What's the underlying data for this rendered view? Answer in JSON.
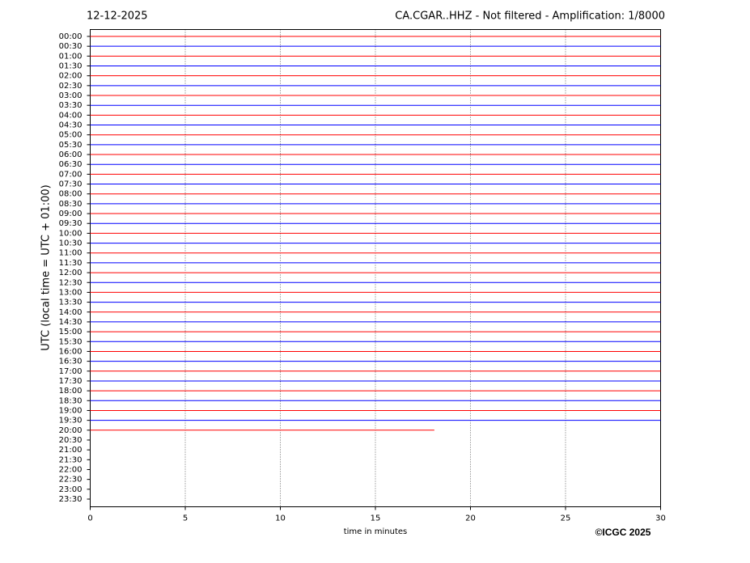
{
  "chart_data": {
    "type": "helicorder",
    "title_left": "12-12-2025",
    "title_right": "CA.CGAR..HHZ - Not filtered - Amplification: 1/8000",
    "ylabel": "UTC (local time = UTC + 01:00)",
    "xlabel": "time in minutes",
    "credit": "©ICGC 2025",
    "categories": [
      "00:00",
      "00:30",
      "01:00",
      "01:30",
      "02:00",
      "02:30",
      "03:00",
      "03:30",
      "04:00",
      "04:30",
      "05:00",
      "05:30",
      "06:00",
      "06:30",
      "07:00",
      "07:30",
      "08:00",
      "08:30",
      "09:00",
      "09:30",
      "10:00",
      "10:30",
      "11:00",
      "11:30",
      "12:00",
      "12:30",
      "13:00",
      "13:30",
      "14:00",
      "14:30",
      "15:00",
      "15:30",
      "16:00",
      "16:30",
      "17:00",
      "17:30",
      "18:00",
      "18:30",
      "19:00",
      "19:30",
      "20:00",
      "20:30",
      "21:00",
      "21:30",
      "22:00",
      "22:30",
      "23:00",
      "23:30"
    ],
    "trace_end": [
      30,
      30,
      30,
      30,
      30,
      30,
      30,
      30,
      30,
      30,
      30,
      30,
      30,
      30,
      30,
      30,
      30,
      30,
      30,
      30,
      30,
      30,
      30,
      30,
      30,
      30,
      30,
      30,
      30,
      30,
      30,
      30,
      30,
      30,
      30,
      30,
      30,
      30,
      30,
      30,
      18.1,
      null,
      null,
      null,
      null,
      null,
      null,
      null
    ],
    "colors": [
      "#ff0000",
      "#0000ff"
    ],
    "xlim": [
      0,
      30
    ],
    "xticks": [
      0,
      5,
      10,
      15,
      20,
      25,
      30
    ],
    "grid": true
  }
}
